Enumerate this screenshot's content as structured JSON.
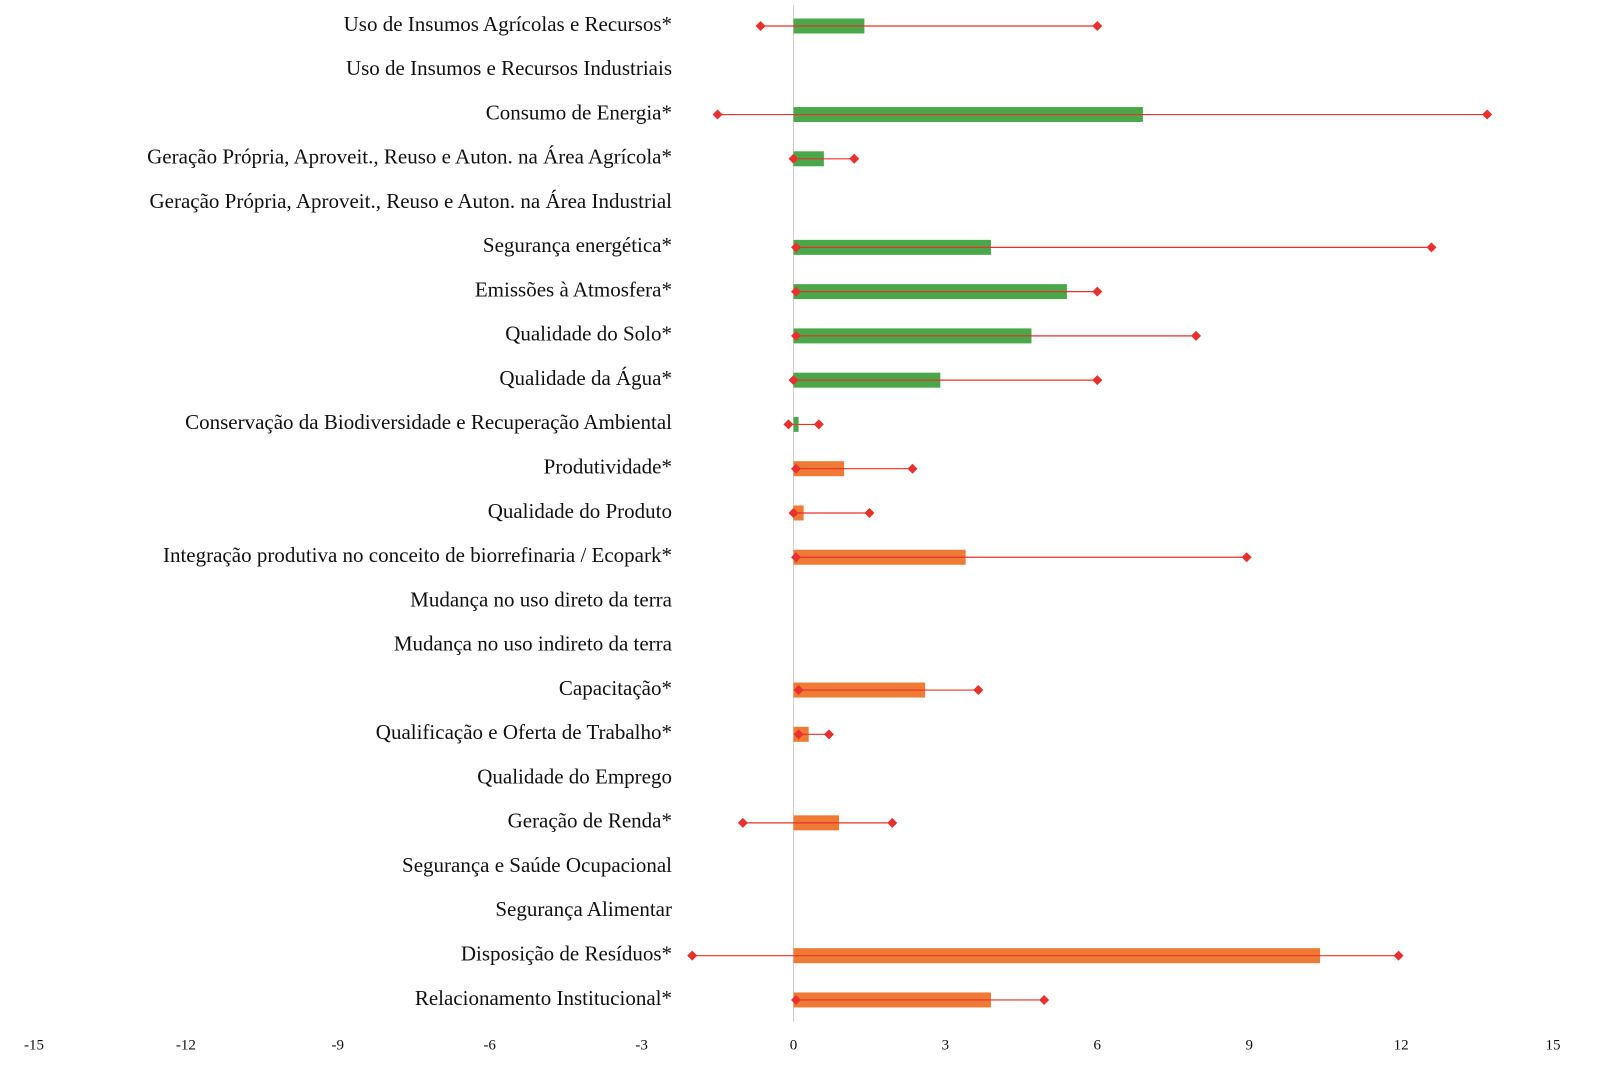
{
  "chart_data": {
    "type": "range-bar",
    "categories": [
      "Uso de Insumos Agrícolas e Recursos*",
      "Uso de Insumos e Recursos Industriais",
      "Consumo de Energia*",
      "Geração Própria, Aproveit., Reuso e Auton. na Área Agrícola*",
      "Geração Própria, Aproveit., Reuso e Auton. na Área Industrial",
      "Segurança energética*",
      "Emissões à Atmosfera*",
      "Qualidade do Solo*",
      "Qualidade da Água*",
      "Conservação da Biodiversidade e Recuperação Ambiental",
      "Produtividade*",
      "Qualidade do Produto",
      "Integração produtiva no conceito de biorrefinaria / Ecopark*",
      "Mudança no uso direto da terra",
      "Mudança no uso indireto da terra",
      "Capacitação*",
      "Qualificação e Oferta de Trabalho*",
      "Qualidade do Emprego",
      "Geração de Renda*",
      "Segurança e Saúde Ocupacional",
      "Segurança Alimentar",
      "Disposição de Resíduos*",
      "Relacionamento Institucional*"
    ],
    "values": [
      1.4,
      null,
      6.9,
      0.6,
      null,
      3.9,
      5.4,
      4.7,
      2.9,
      0.1,
      1.0,
      0.2,
      3.4,
      null,
      null,
      2.6,
      0.3,
      null,
      0.9,
      null,
      null,
      10.4,
      3.9
    ],
    "low": [
      -0.65,
      null,
      -1.5,
      0,
      null,
      0.05,
      0.05,
      0.05,
      0,
      -0.1,
      0.05,
      0,
      0.05,
      null,
      null,
      0.1,
      0.1,
      null,
      -1.0,
      null,
      null,
      -2.0,
      0.05
    ],
    "high": [
      6.0,
      null,
      13.7,
      1.2,
      null,
      12.6,
      6.0,
      7.95,
      6.0,
      0.5,
      2.35,
      1.5,
      8.95,
      null,
      null,
      3.65,
      0.7,
      null,
      1.95,
      null,
      null,
      11.95,
      4.95
    ],
    "colors": [
      "#4ba84a",
      "#4ba84a",
      "#4ba84a",
      "#4ba84a",
      "#4ba84a",
      "#4ba84a",
      "#4ba84a",
      "#4ba84a",
      "#4ba84a",
      "#4ba84a",
      "#ef7a35",
      "#ef7a35",
      "#ef7a35",
      "#ef7a35",
      "#ef7a35",
      "#ef7a35",
      "#ef7a35",
      "#ef7a35",
      "#ef7a35",
      "#ef7a35",
      "#ef7a35",
      "#ef7a35",
      "#ef7a35"
    ],
    "range_color": "#e8302c",
    "xlim": [
      -15,
      15
    ],
    "xticks": [
      -15,
      -12,
      -9,
      -6,
      -3,
      0,
      3,
      6,
      9,
      12,
      15
    ]
  }
}
